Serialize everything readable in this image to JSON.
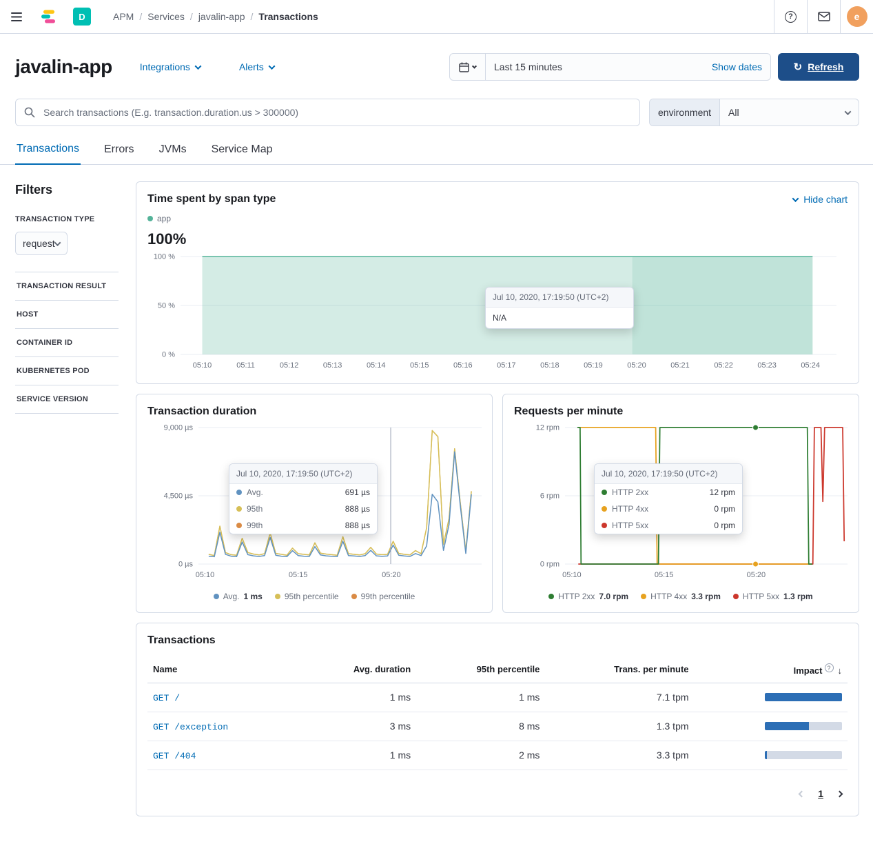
{
  "topbar": {
    "breadcrumbs": [
      "APM",
      "Services",
      "javalin-app",
      "Transactions"
    ],
    "deployment_badge": "D",
    "avatar_initial": "e"
  },
  "header": {
    "title": "javalin-app",
    "integrations_label": "Integrations",
    "alerts_label": "Alerts",
    "time_range": "Last 15 minutes",
    "show_dates_label": "Show dates",
    "refresh_label": "Refresh"
  },
  "search": {
    "placeholder": "Search transactions (E.g. transaction.duration.us > 300000)",
    "environment_label": "environment",
    "environment_value": "All"
  },
  "tabs": [
    {
      "label": "Transactions",
      "active": true
    },
    {
      "label": "Errors",
      "active": false
    },
    {
      "label": "JVMs",
      "active": false
    },
    {
      "label": "Service Map",
      "active": false
    }
  ],
  "filters": {
    "title": "Filters",
    "transaction_type_label": "TRANSACTION TYPE",
    "transaction_type_value": "request",
    "sections": [
      "TRANSACTION RESULT",
      "HOST",
      "CONTAINER ID",
      "KUBERNETES POD",
      "SERVICE VERSION"
    ]
  },
  "charts": {
    "hide_chart_label": "Hide chart"
  },
  "colors": {
    "primary": "#006bb4",
    "refresh_button": "#1d4e89",
    "impact_bar": "#2c6eb5",
    "impact_track": "#d3dae6",
    "span_teal": "#54B399",
    "avg_blue": "#6092C0",
    "p95_yellow": "#D6BF57",
    "p99_orange": "#DA8B45",
    "http2xx_green": "#2e7d32",
    "http4xx_orange": "#e7a21f",
    "http5xx_red": "#cc372c"
  },
  "chart_data": [
    {
      "id": "time-spent-by-span-type",
      "type": "area",
      "title": "Time spent by span type",
      "current_value_label": "100%",
      "ylim": [
        0,
        100
      ],
      "xdomain": [
        -0.5,
        14.6
      ],
      "yticks": [
        {
          "value": 100,
          "label": "100 %"
        },
        {
          "value": 50,
          "label": "50 %"
        },
        {
          "value": 0,
          "label": "0 %"
        }
      ],
      "xticks": [
        {
          "value": 0,
          "label": "05:10"
        },
        {
          "value": 1,
          "label": "05:11"
        },
        {
          "value": 2,
          "label": "05:12"
        },
        {
          "value": 3,
          "label": "05:13"
        },
        {
          "value": 4,
          "label": "05:14"
        },
        {
          "value": 5,
          "label": "05:15"
        },
        {
          "value": 6,
          "label": "05:16"
        },
        {
          "value": 7,
          "label": "05:17"
        },
        {
          "value": 8,
          "label": "05:18"
        },
        {
          "value": 9,
          "label": "05:19"
        },
        {
          "value": 10,
          "label": "05:20"
        },
        {
          "value": 11,
          "label": "05:21"
        },
        {
          "value": 12,
          "label": "05:22"
        },
        {
          "value": 13,
          "label": "05:23"
        },
        {
          "value": 14,
          "label": "05:24"
        }
      ],
      "legend": [
        {
          "color": "#54B399",
          "label": "app"
        }
      ],
      "series": [
        {
          "name": "app",
          "type": "area",
          "color": "#54B399",
          "width": 1.5,
          "points": [
            [
              0,
              100
            ],
            [
              14.05,
              100
            ]
          ]
        }
      ],
      "hover_band": [
        9.9,
        14.05
      ],
      "tooltip": {
        "title": "Jul 10, 2020, 17:19:50 (UTC+2)",
        "rows": [
          {
            "label": "N/A"
          }
        ]
      }
    },
    {
      "id": "transaction-duration",
      "type": "line",
      "title": "Transaction duration",
      "unit": "µs",
      "ylim": [
        0,
        9000
      ],
      "xdomain": [
        -0.35,
        14.85
      ],
      "yticks": [
        {
          "value": 9000,
          "label": "9,000 µs"
        },
        {
          "value": 4500,
          "label": "4,500 µs"
        },
        {
          "value": 0,
          "label": "0 µs"
        }
      ],
      "xticks": [
        {
          "value": 0,
          "label": "05:10"
        },
        {
          "value": 5,
          "label": "05:15"
        },
        {
          "value": 10,
          "label": "05:20"
        }
      ],
      "x_start": 0.2,
      "x_step": 0.3,
      "crosshair_x": 9.97,
      "series": [
        {
          "name": "99th percentile",
          "color": "#DA8B45",
          "width": 1.25,
          "values": [
            640,
            560,
            2500,
            760,
            620,
            580,
            1700,
            760,
            660,
            600,
            680,
            2050,
            700,
            640,
            580,
            1050,
            680,
            640,
            600,
            1400,
            720,
            660,
            620,
            580,
            1800,
            680,
            640,
            600,
            680,
            1100,
            660,
            620,
            640,
            1500,
            700,
            640,
            600,
            888,
            680,
            2400,
            8800,
            8400,
            1300,
            3000,
            7600,
            4100,
            860,
            4800
          ]
        },
        {
          "name": "95th percentile",
          "color": "#D6BF57",
          "width": 1.5,
          "values": [
            640,
            560,
            2500,
            760,
            620,
            580,
            1700,
            760,
            660,
            600,
            680,
            2050,
            700,
            640,
            580,
            1050,
            680,
            640,
            600,
            1400,
            720,
            660,
            620,
            580,
            1800,
            680,
            640,
            600,
            680,
            1100,
            660,
            620,
            640,
            1500,
            700,
            640,
            600,
            888,
            680,
            2400,
            8800,
            8400,
            1300,
            3000,
            7600,
            4100,
            860,
            4800
          ]
        },
        {
          "name": "Avg.",
          "color": "#6092C0",
          "width": 1.5,
          "values": [
            520,
            480,
            2100,
            640,
            520,
            490,
            1450,
            620,
            540,
            500,
            560,
            1750,
            580,
            520,
            490,
            880,
            560,
            520,
            500,
            1150,
            600,
            540,
            510,
            490,
            1500,
            560,
            530,
            500,
            560,
            900,
            540,
            510,
            530,
            1250,
            580,
            530,
            500,
            691,
            560,
            1200,
            4600,
            4100,
            900,
            2600,
            7400,
            3900,
            700,
            4600
          ]
        }
      ],
      "legend": [
        {
          "color": "#6092C0",
          "label": "Avg.",
          "value": "1 ms"
        },
        {
          "color": "#D6BF57",
          "label": "95th percentile"
        },
        {
          "color": "#DA8B45",
          "label": "99th percentile"
        }
      ],
      "tooltip": {
        "title": "Jul 10, 2020, 17:19:50 (UTC+2)",
        "rows": [
          {
            "color": "#6092C0",
            "label": "Avg.",
            "value": "691 µs"
          },
          {
            "color": "#D6BF57",
            "label": "95th",
            "value": "888 µs"
          },
          {
            "color": "#DA8B45",
            "label": "99th",
            "value": "888 µs"
          }
        ]
      }
    },
    {
      "id": "requests-per-minute",
      "type": "line",
      "title": "Requests per minute",
      "unit": "rpm",
      "ylim": [
        0,
        12
      ],
      "xdomain": [
        -0.37,
        14.96
      ],
      "yticks": [
        {
          "value": 12,
          "label": "12 rpm"
        },
        {
          "value": 6,
          "label": "6 rpm"
        },
        {
          "value": 0,
          "label": "0 rpm"
        }
      ],
      "xticks": [
        {
          "value": 0,
          "label": "05:10"
        },
        {
          "value": 5,
          "label": "05:15"
        },
        {
          "value": 10,
          "label": "05:20"
        }
      ],
      "series": [
        {
          "name": "HTTP 5xx",
          "color": "#cc372c",
          "width": 1.75,
          "points": [
            [
              0.35,
              0
            ],
            [
              13.08,
              0
            ],
            [
              13.16,
              12
            ],
            [
              13.52,
              12
            ],
            [
              13.62,
              5.5
            ],
            [
              13.72,
              12
            ],
            [
              14.7,
              12
            ],
            [
              14.78,
              2
            ]
          ]
        },
        {
          "name": "HTTP 4xx",
          "color": "#e7a21f",
          "width": 1.75,
          "points": [
            [
              0.35,
              12
            ],
            [
              4.55,
              12
            ],
            [
              4.63,
              0
            ],
            [
              12.98,
              0
            ]
          ]
        },
        {
          "name": "HTTP 2xx",
          "color": "#2e7d32",
          "width": 1.75,
          "points": [
            [
              0.3,
              12
            ],
            [
              0.45,
              12
            ],
            [
              0.5,
              0
            ],
            [
              4.7,
              0
            ],
            [
              4.78,
              12
            ],
            [
              12.78,
              12
            ],
            [
              12.86,
              0
            ],
            [
              13.05,
              0
            ]
          ]
        }
      ],
      "markers": [
        {
          "x": 9.97,
          "y": 12,
          "color": "#2e7d32"
        },
        {
          "x": 9.97,
          "y": 0,
          "color": "#e7a21f"
        }
      ],
      "legend": [
        {
          "color": "#2e7d32",
          "label": "HTTP 2xx",
          "value": "7.0 rpm"
        },
        {
          "color": "#e7a21f",
          "label": "HTTP 4xx",
          "value": "3.3 rpm"
        },
        {
          "color": "#cc372c",
          "label": "HTTP 5xx",
          "value": "1.3 rpm"
        }
      ],
      "tooltip": {
        "title": "Jul 10, 2020, 17:19:50 (UTC+2)",
        "rows": [
          {
            "color": "#2e7d32",
            "label": "HTTP 2xx",
            "value": "12 rpm"
          },
          {
            "color": "#e7a21f",
            "label": "HTTP 4xx",
            "value": "0 rpm"
          },
          {
            "color": "#cc372c",
            "label": "HTTP 5xx",
            "value": "0 rpm"
          }
        ]
      }
    }
  ],
  "transactions_table": {
    "title": "Transactions",
    "columns": [
      "Name",
      "Avg. duration",
      "95th percentile",
      "Trans. per minute",
      "Impact"
    ],
    "rows": [
      {
        "name": "GET /",
        "avg_duration": "1 ms",
        "p95": "1 ms",
        "tpm": "7.1 tpm",
        "impact_pct": 100
      },
      {
        "name": "GET /exception",
        "avg_duration": "3 ms",
        "p95": "8 ms",
        "tpm": "1.3 tpm",
        "impact_pct": 57
      },
      {
        "name": "GET /404",
        "avg_duration": "1 ms",
        "p95": "2 ms",
        "tpm": "3.3 tpm",
        "impact_pct": 3
      }
    ],
    "page": "1"
  }
}
